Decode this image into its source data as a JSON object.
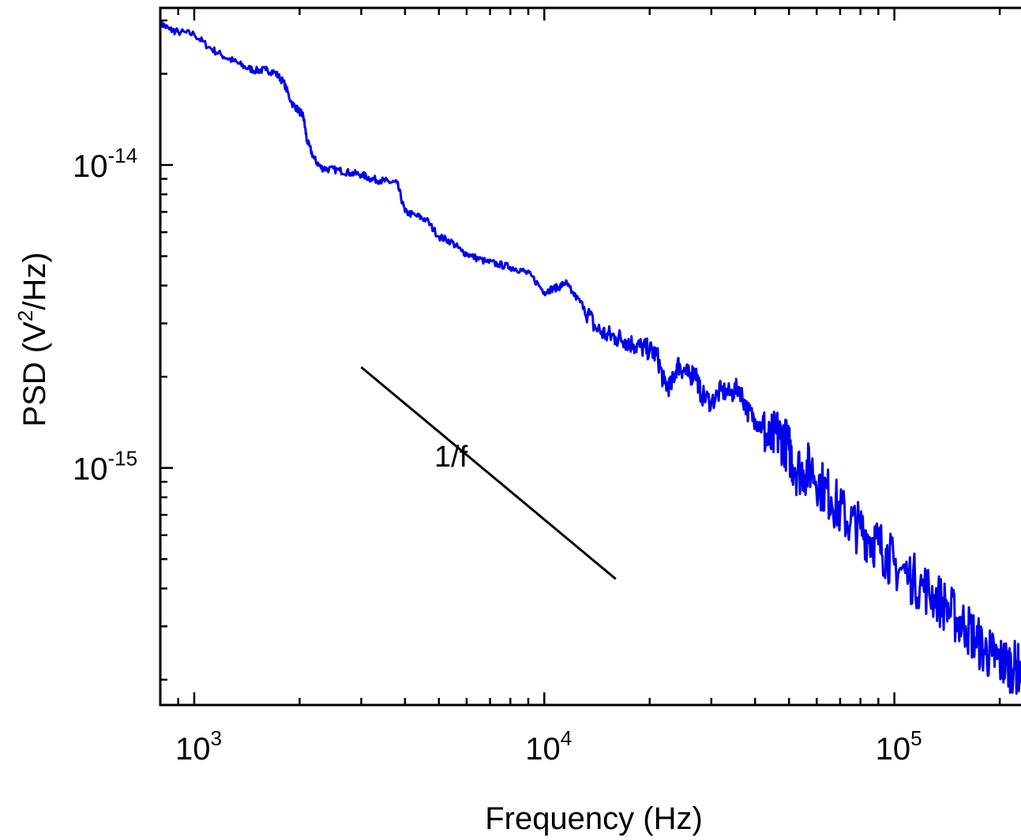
{
  "chart_data": {
    "type": "line",
    "xlabel": "Frequency (Hz)",
    "ylabel_prefix": "PSD (V",
    "ylabel_sup": "2",
    "ylabel_suffix": "/Hz)",
    "x_scale": "log",
    "y_scale": "log",
    "xlim": [
      800,
      230000
    ],
    "ylim": [
      1.65e-16,
      3.3e-14
    ],
    "x_ticks": [
      {
        "value": 1000,
        "base": "10",
        "exp": "3"
      },
      {
        "value": 10000,
        "base": "10",
        "exp": "4"
      },
      {
        "value": 100000,
        "base": "10",
        "exp": "5"
      }
    ],
    "y_ticks": [
      {
        "value": 1e-14,
        "base": "10",
        "exp": "-14"
      },
      {
        "value": 1e-15,
        "base": "10",
        "exp": "-15"
      }
    ],
    "grid": false,
    "series": [
      {
        "color": "#0000ee",
        "points": [
          [
            800,
            2.95e-14
          ],
          [
            850,
            2.8e-14
          ],
          [
            900,
            2.75e-14
          ],
          [
            1000,
            2.7e-14
          ],
          [
            1100,
            2.45e-14
          ],
          [
            1200,
            2.3e-14
          ],
          [
            1300,
            2.2e-14
          ],
          [
            1400,
            2.1e-14
          ],
          [
            1500,
            2.05e-14
          ],
          [
            1600,
            2.06e-14
          ],
          [
            1700,
            2.02e-14
          ],
          [
            1800,
            1.88e-14
          ],
          [
            1900,
            1.6e-14
          ],
          [
            2000,
            1.5e-14
          ],
          [
            2050,
            1.45e-14
          ],
          [
            2100,
            1.2e-14
          ],
          [
            2200,
            1.05e-14
          ],
          [
            2300,
            9.8e-15
          ],
          [
            2400,
            9.7e-15
          ],
          [
            2600,
            9.6e-15
          ],
          [
            2800,
            9.4e-15
          ],
          [
            3000,
            9.3e-15
          ],
          [
            3200,
            9e-15
          ],
          [
            3400,
            8.9e-15
          ],
          [
            3600,
            8.8e-15
          ],
          [
            3800,
            8.7e-15
          ],
          [
            4000,
            7e-15
          ],
          [
            4300,
            6.8e-15
          ],
          [
            4600,
            6.6e-15
          ],
          [
            5000,
            5.8e-15
          ],
          [
            5400,
            5.6e-15
          ],
          [
            5800,
            5.2e-15
          ],
          [
            6200,
            5e-15
          ],
          [
            6800,
            4.8e-15
          ],
          [
            7400,
            4.7e-15
          ],
          [
            8000,
            4.6e-15
          ],
          [
            8600,
            4.5e-15
          ],
          [
            9200,
            4.3e-15
          ],
          [
            10000,
            3.8e-15
          ],
          [
            10500,
            3.9e-15
          ],
          [
            11000,
            3.95e-15
          ],
          [
            11500,
            4.1e-15
          ],
          [
            12000,
            3.8e-15
          ],
          [
            13000,
            3.4e-15
          ],
          [
            14000,
            2.9e-15
          ],
          [
            15000,
            2.75e-15
          ],
          [
            16000,
            2.7e-15
          ],
          [
            17000,
            2.65e-15
          ],
          [
            18000,
            2.55e-15
          ],
          [
            19000,
            2.5e-15
          ],
          [
            20000,
            2.45e-15
          ],
          [
            21000,
            2.35e-15
          ],
          [
            22000,
            1.9e-15
          ],
          [
            23000,
            1.85e-15
          ],
          [
            24000,
            2.2e-15
          ],
          [
            25000,
            2.1e-15
          ],
          [
            26000,
            2e-15
          ],
          [
            27000,
            2.1e-15
          ],
          [
            28000,
            1.75e-15
          ],
          [
            30000,
            1.65e-15
          ],
          [
            32000,
            1.8e-15
          ],
          [
            34000,
            1.75e-15
          ],
          [
            36000,
            1.85e-15
          ],
          [
            38000,
            1.55e-15
          ],
          [
            40000,
            1.45e-15
          ],
          [
            42000,
            1.35e-15
          ],
          [
            44000,
            1.2e-15
          ],
          [
            46000,
            1.3e-15
          ],
          [
            48000,
            1.25e-15
          ],
          [
            50000,
            1.15e-15
          ],
          [
            52000,
            1e-15
          ],
          [
            55000,
            9.8e-16
          ],
          [
            58000,
            1e-15
          ],
          [
            62000,
            8.7e-16
          ],
          [
            66000,
            8e-16
          ],
          [
            70000,
            7.2e-16
          ],
          [
            75000,
            6.6e-16
          ],
          [
            80000,
            6.3e-16
          ],
          [
            85000,
            5.9e-16
          ],
          [
            90000,
            5.6e-16
          ],
          [
            95000,
            5.2e-16
          ],
          [
            100000,
            4.8e-16
          ],
          [
            110000,
            4.4e-16
          ],
          [
            120000,
            4.1e-16
          ],
          [
            130000,
            3.8e-16
          ],
          [
            140000,
            3.5e-16
          ],
          [
            150000,
            3.2e-16
          ],
          [
            160000,
            3e-16
          ],
          [
            170000,
            2.75e-16
          ],
          [
            180000,
            2.5e-16
          ],
          [
            190000,
            2.4e-16
          ],
          [
            200000,
            2.3e-16
          ],
          [
            210000,
            2.25e-16
          ],
          [
            220000,
            2.2e-16
          ],
          [
            230000,
            2.15e-16
          ]
        ]
      }
    ],
    "reference_line": {
      "label": "1/f",
      "points": [
        [
          3000,
          2.15e-15
        ],
        [
          16000,
          4.3e-16
        ]
      ]
    }
  }
}
